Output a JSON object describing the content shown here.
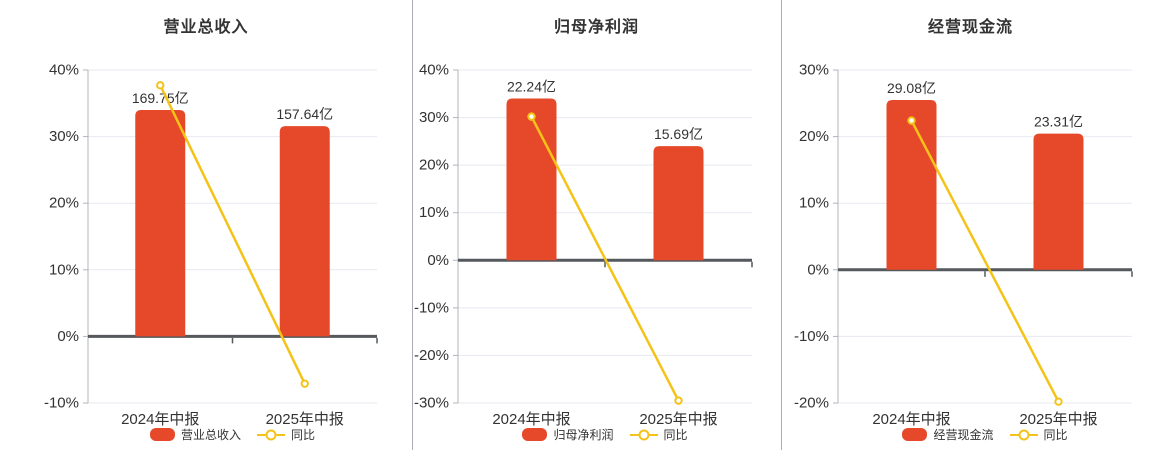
{
  "colors": {
    "bar": "#e6492a",
    "line": "#f4c318",
    "marker_fill": "#ffffff",
    "axis_text": "#333333",
    "title_text": "#333333",
    "zero_line": "#55585d",
    "grid_line": "#e6e9f1",
    "axis_line": "#b0b4ba",
    "separator": "#aaadb3",
    "background": "#ffffff"
  },
  "chart_data": [
    {
      "type": "bar",
      "title": "营业总收入",
      "categories": [
        "2024年中报",
        "2025年中报"
      ],
      "series": [
        {
          "name": "营业总收入",
          "type": "bar",
          "unit": "亿",
          "values": [
            169.75,
            157.64
          ],
          "data_labels": [
            "169.75亿",
            "157.64亿"
          ]
        },
        {
          "name": "同比",
          "type": "line",
          "unit": "%",
          "values": [
            37.7,
            -7.1
          ]
        }
      ],
      "y_axis": {
        "min": -10,
        "max": 40,
        "step": 10,
        "tick_labels": [
          "40%",
          "30%",
          "20%",
          "10%",
          "0%",
          "-10%"
        ],
        "grid": true
      },
      "legend_position": "bottom"
    },
    {
      "type": "bar",
      "title": "归母净利润",
      "categories": [
        "2024年中报",
        "2025年中报"
      ],
      "series": [
        {
          "name": "归母净利润",
          "type": "bar",
          "unit": "亿",
          "values": [
            22.24,
            15.69
          ],
          "data_labels": [
            "22.24亿",
            "15.69亿"
          ]
        },
        {
          "name": "同比",
          "type": "line",
          "unit": "%",
          "values": [
            30.2,
            -29.5
          ]
        }
      ],
      "y_axis": {
        "min": -30,
        "max": 40,
        "step": 10,
        "tick_labels": [
          "40%",
          "30%",
          "20%",
          "10%",
          "0%",
          "-10%",
          "-20%",
          "-30%"
        ],
        "grid": true
      },
      "legend_position": "bottom"
    },
    {
      "type": "bar",
      "title": "经营现金流",
      "categories": [
        "2024年中报",
        "2025年中报"
      ],
      "series": [
        {
          "name": "经营现金流",
          "type": "bar",
          "unit": "亿",
          "values": [
            29.08,
            23.31
          ],
          "data_labels": [
            "29.08亿",
            "23.31亿"
          ]
        },
        {
          "name": "同比",
          "type": "line",
          "unit": "%",
          "values": [
            22.4,
            -19.8
          ]
        }
      ],
      "y_axis": {
        "min": -20,
        "max": 30,
        "step": 10,
        "tick_labels": [
          "30%",
          "20%",
          "10%",
          "0%",
          "-10%",
          "-20%"
        ],
        "grid": true
      },
      "legend_position": "bottom"
    }
  ]
}
